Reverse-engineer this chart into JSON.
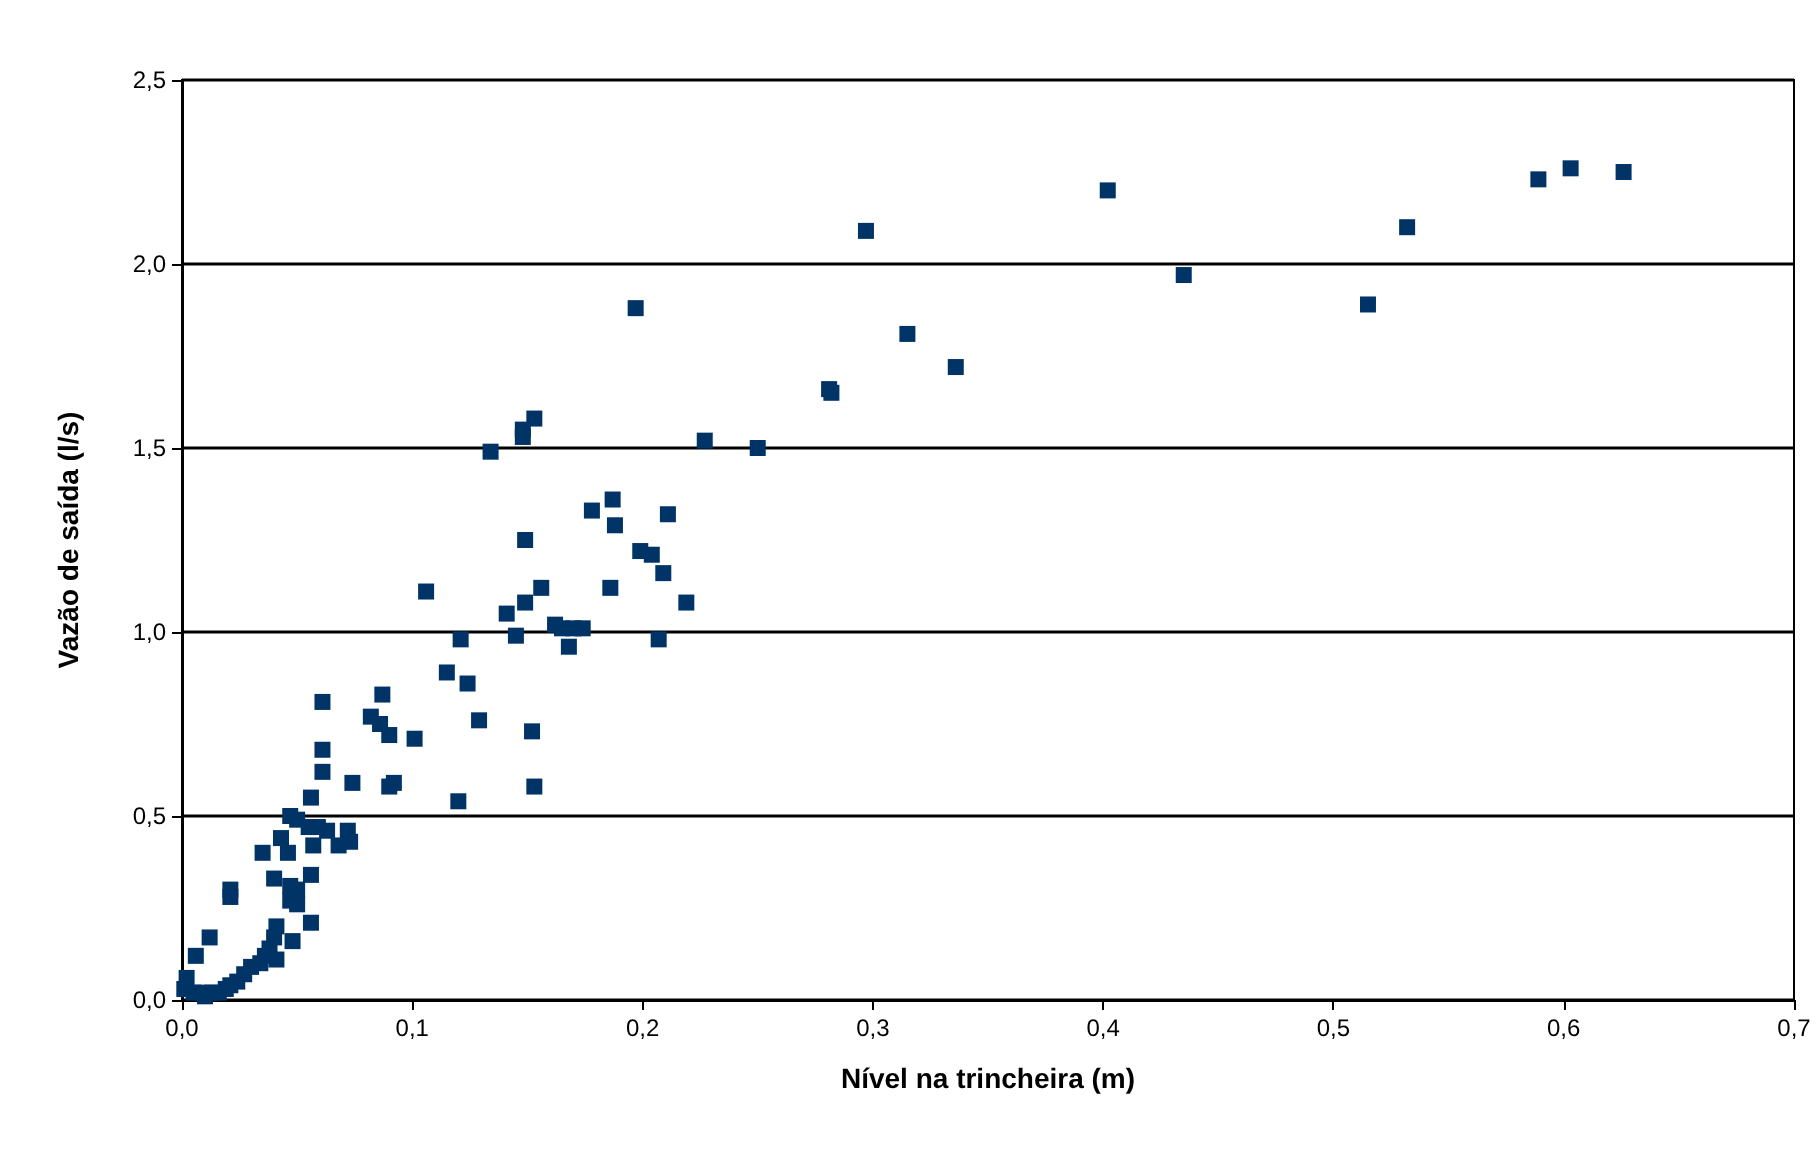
{
  "chart_data": {
    "type": "scatter",
    "xlabel": "Nível na trincheira (m)",
    "ylabel": "Vazão de saída (l/s)",
    "xlim": [
      0,
      0.7
    ],
    "xticks": [
      {
        "value": 0,
        "label": "0,0"
      },
      {
        "value": 0.1,
        "label": "0,1"
      },
      {
        "value": 0.2,
        "label": "0,2"
      },
      {
        "value": 0.3,
        "label": "0,3"
      },
      {
        "value": 0.4,
        "label": "0,4"
      },
      {
        "value": 0.5,
        "label": "0,5"
      },
      {
        "value": 0.6,
        "label": "0,6"
      },
      {
        "value": 0.7,
        "label": "0,7"
      }
    ],
    "ylim": [
      0,
      2.5
    ],
    "yticks": [
      {
        "value": 0,
        "label": "0,0"
      },
      {
        "value": 0.5,
        "label": "0,5"
      },
      {
        "value": 1,
        "label": "1,0"
      },
      {
        "value": 1.5,
        "label": "1,5"
      },
      {
        "value": 2,
        "label": "2,0"
      },
      {
        "value": 2.5,
        "label": "2,5"
      }
    ],
    "grid": "y",
    "marker": "square",
    "series": [
      {
        "color": "#003366",
        "x": [
          0.297,
          0.402,
          0.435,
          0.515,
          0.532,
          0.589,
          0.603,
          0.626,
          0.315,
          0.336,
          0.281,
          0.282,
          0.25,
          0.227,
          0.197,
          0.153,
          0.148,
          0.148,
          0.134,
          0.178,
          0.187,
          0.188,
          0.199,
          0.204,
          0.211,
          0.209,
          0.219,
          0.207,
          0.186,
          0.149,
          0.149,
          0.156,
          0.141,
          0.145,
          0.162,
          0.165,
          0.17,
          0.174,
          0.168,
          0.106,
          0.121,
          0.115,
          0.124,
          0.129,
          0.152,
          0.153,
          0.12,
          0.101,
          0.092,
          0.09,
          0.09,
          0.087,
          0.086,
          0.082,
          0.074,
          0.061,
          0.061,
          0.061,
          0.072,
          0.073,
          0.068,
          0.063,
          0.059,
          0.057,
          0.056,
          0.055,
          0.056,
          0.056,
          0.05,
          0.047,
          0.046,
          0.043,
          0.04,
          0.035,
          0.047,
          0.05,
          0.047,
          0.05,
          0.048,
          0.041,
          0.04,
          0.038,
          0.036,
          0.041,
          0.034,
          0.03,
          0.027,
          0.024,
          0.021,
          0.019,
          0.016,
          0.021,
          0.021,
          0.012,
          0.006,
          0.002,
          0.001,
          0.005,
          0.01,
          0.013,
          0.009
        ],
        "values": [
          2.09,
          2.2,
          1.97,
          1.89,
          2.1,
          2.23,
          2.26,
          2.25,
          1.81,
          1.72,
          1.66,
          1.65,
          1.5,
          1.52,
          1.88,
          1.58,
          1.55,
          1.53,
          1.49,
          1.33,
          1.36,
          1.29,
          1.22,
          1.21,
          1.32,
          1.16,
          1.08,
          0.98,
          1.12,
          1.25,
          1.08,
          1.12,
          1.05,
          0.99,
          1.02,
          1.01,
          1.01,
          1.01,
          0.96,
          1.11,
          0.98,
          0.89,
          0.86,
          0.76,
          0.73,
          0.58,
          0.54,
          0.71,
          0.59,
          0.58,
          0.72,
          0.83,
          0.75,
          0.77,
          0.59,
          0.81,
          0.68,
          0.62,
          0.46,
          0.43,
          0.42,
          0.46,
          0.47,
          0.42,
          0.55,
          0.47,
          0.34,
          0.21,
          0.49,
          0.5,
          0.4,
          0.44,
          0.33,
          0.4,
          0.31,
          0.3,
          0.27,
          0.26,
          0.16,
          0.2,
          0.17,
          0.14,
          0.12,
          0.11,
          0.1,
          0.09,
          0.07,
          0.05,
          0.04,
          0.03,
          0.02,
          0.3,
          0.28,
          0.17,
          0.12,
          0.06,
          0.03,
          0.02,
          0.01,
          0.02,
          0.02
        ]
      }
    ]
  }
}
